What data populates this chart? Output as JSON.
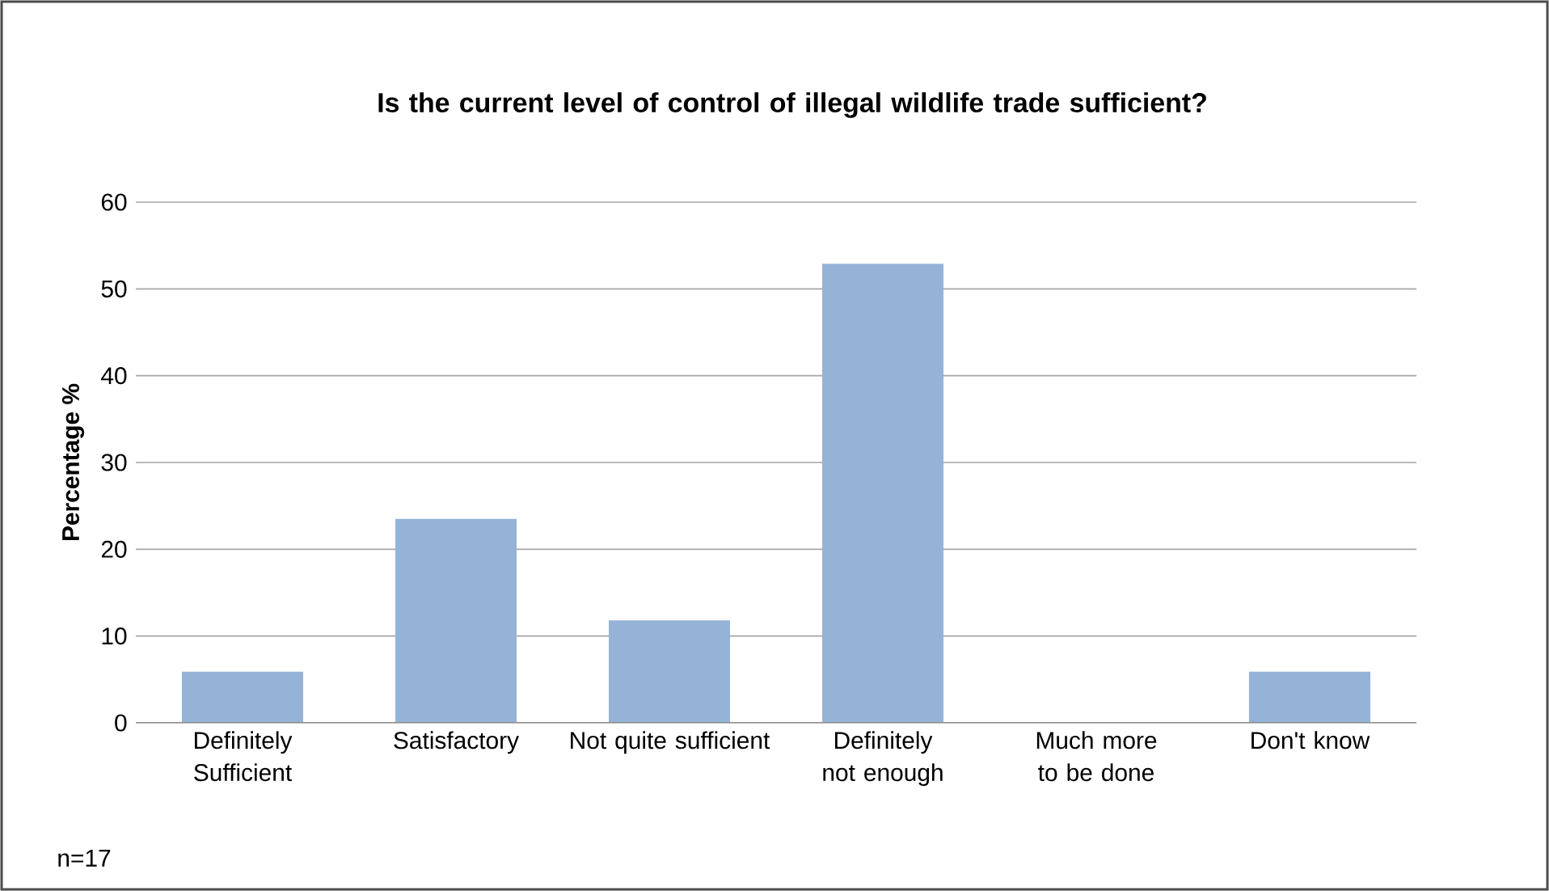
{
  "chart_data": {
    "type": "bar",
    "title": "Is the current level of control of illegal wildlife trade sufficient?",
    "ylabel": "Percentage %",
    "categories": [
      "Definitely Sufficient",
      "Satisfactory",
      "Not quite sufficient",
      "Definitely not enough",
      "Much more to be done",
      "Don't know"
    ],
    "values": [
      5.9,
      23.5,
      11.8,
      52.9,
      0,
      5.9
    ],
    "color": "#95b3d7",
    "ylim": [
      0,
      60
    ],
    "yticks": [
      0,
      10,
      20,
      30,
      40,
      50,
      60
    ],
    "grid": "y",
    "annotations": [
      "n=17"
    ]
  }
}
